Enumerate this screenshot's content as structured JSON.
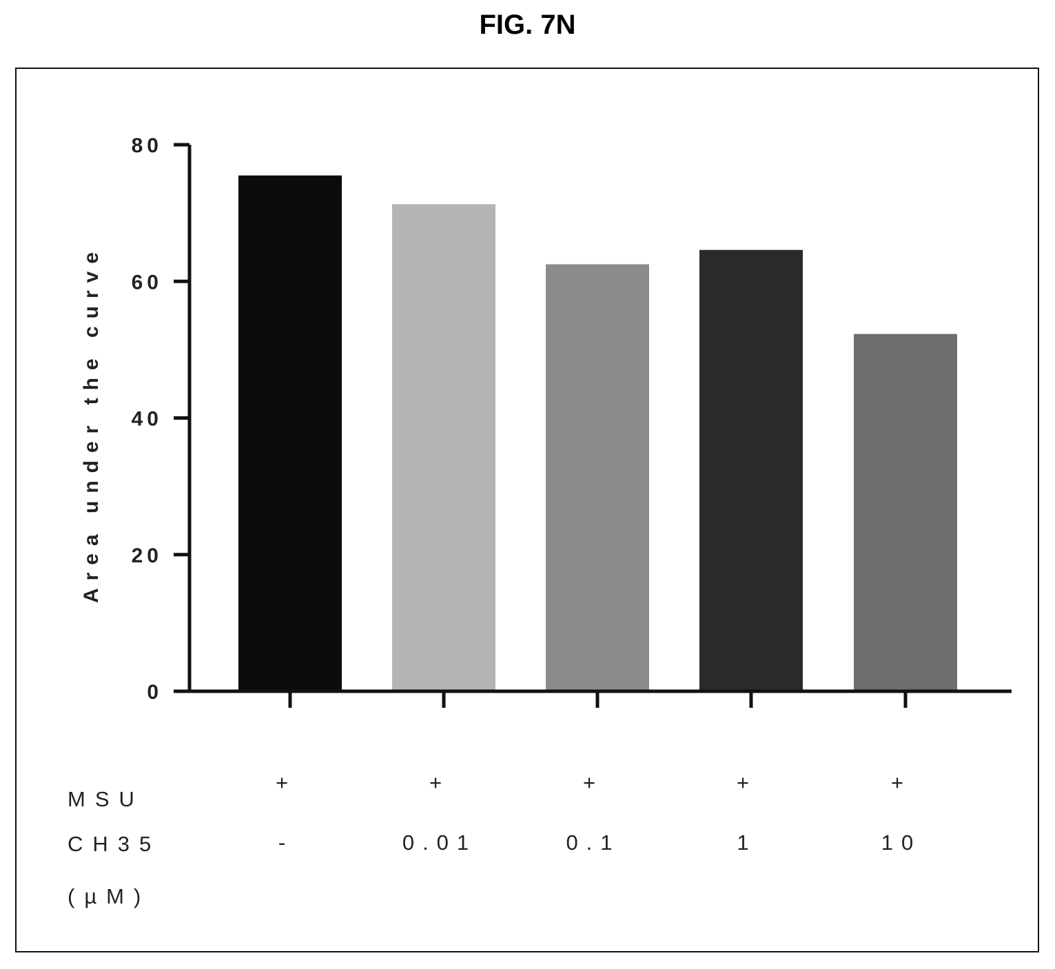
{
  "figure_title": "FIG. 7N",
  "chart_data": {
    "type": "bar",
    "title": "",
    "xlabel": "",
    "ylabel": "Area under the curve",
    "ylim": [
      0,
      80
    ],
    "yticks": [
      "0",
      "20",
      "40",
      "60",
      "80"
    ],
    "categories": [
      "-",
      "0.01",
      "0.1",
      "1",
      "10"
    ],
    "values": [
      75.5,
      71.3,
      62.5,
      64.6,
      52.3
    ],
    "bar_colors": [
      "#0b0b0b",
      "#b4b4b4",
      "#8c8c8c",
      "#2a2a2a",
      "#6e6e6e"
    ],
    "grid": false,
    "legend": "none"
  },
  "treatment_table": {
    "rows": [
      {
        "label": "MSU",
        "values": [
          "+",
          "+",
          "+",
          "+",
          "+"
        ]
      },
      {
        "label": "CH35",
        "values": [
          "-",
          "0.01",
          "0.1",
          "1",
          "10"
        ]
      },
      {
        "label": "(µM)",
        "values": []
      }
    ]
  }
}
